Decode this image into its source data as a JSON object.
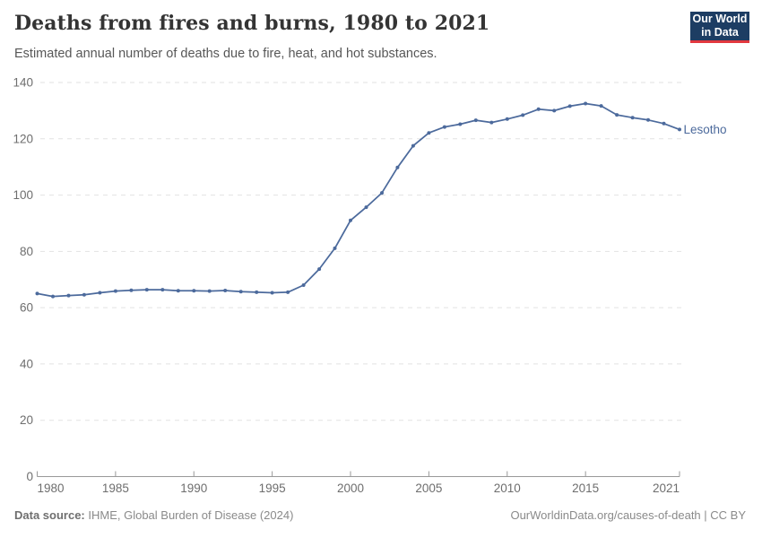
{
  "header": {
    "title": "Deaths from fires and burns, 1980 to 2021",
    "subtitle": "Estimated annual number of deaths due to fire, heat, and hot substances.",
    "logo_line1": "Our World",
    "logo_line2": "in Data"
  },
  "chart_data": {
    "type": "line",
    "title": "Deaths from fires and burns, 1980 to 2021",
    "subtitle": "Estimated annual number of deaths due to fire, heat, and hot substances.",
    "xlabel": "",
    "ylabel": "",
    "xlim": [
      1980,
      2021
    ],
    "ylim": [
      0,
      140
    ],
    "x_ticks": [
      1980,
      1985,
      1990,
      1995,
      2000,
      2005,
      2010,
      2015,
      2021
    ],
    "y_ticks": [
      0,
      20,
      40,
      60,
      80,
      100,
      120,
      140
    ],
    "grid": "horizontal-dashed",
    "legend_position": "end-of-line-label",
    "series": [
      {
        "name": "Lesotho",
        "color": "#4c6a9c",
        "x": [
          1980,
          1981,
          1982,
          1983,
          1984,
          1985,
          1986,
          1987,
          1988,
          1989,
          1990,
          1991,
          1992,
          1993,
          1994,
          1995,
          1996,
          1997,
          1998,
          1999,
          2000,
          2001,
          2002,
          2003,
          2004,
          2005,
          2006,
          2007,
          2008,
          2009,
          2010,
          2011,
          2012,
          2013,
          2014,
          2015,
          2016,
          2017,
          2018,
          2019,
          2020,
          2021
        ],
        "values": [
          65.0,
          64.0,
          64.3,
          64.6,
          65.3,
          65.9,
          66.2,
          66.4,
          66.4,
          66.0,
          66.0,
          65.9,
          66.1,
          65.7,
          65.5,
          65.3,
          65.5,
          68.0,
          73.7,
          81.1,
          91.0,
          95.7,
          100.8,
          109.8,
          117.5,
          122.1,
          124.2,
          125.2,
          126.6,
          125.8,
          127.0,
          128.4,
          130.5,
          130.0,
          131.6,
          132.5,
          131.7,
          128.5,
          127.5,
          126.7,
          125.4,
          123.3
        ]
      }
    ]
  },
  "footer": {
    "source_label": "Data source:",
    "source_text": " IHME, Global Burden of Disease (2024)",
    "link_text": "OurWorldinData.org/causes-of-death | CC BY"
  },
  "colors": {
    "series_line": "#4c6a9c",
    "logo_bg": "#1d3d63",
    "logo_stripe": "#e2383f",
    "gridline": "#e2e2e2",
    "axis_line": "#999999",
    "axis_text": "#6e6e6e",
    "title_text": "#343434",
    "subtitle_text": "#575757",
    "footer_text": "#8a8a8a"
  }
}
